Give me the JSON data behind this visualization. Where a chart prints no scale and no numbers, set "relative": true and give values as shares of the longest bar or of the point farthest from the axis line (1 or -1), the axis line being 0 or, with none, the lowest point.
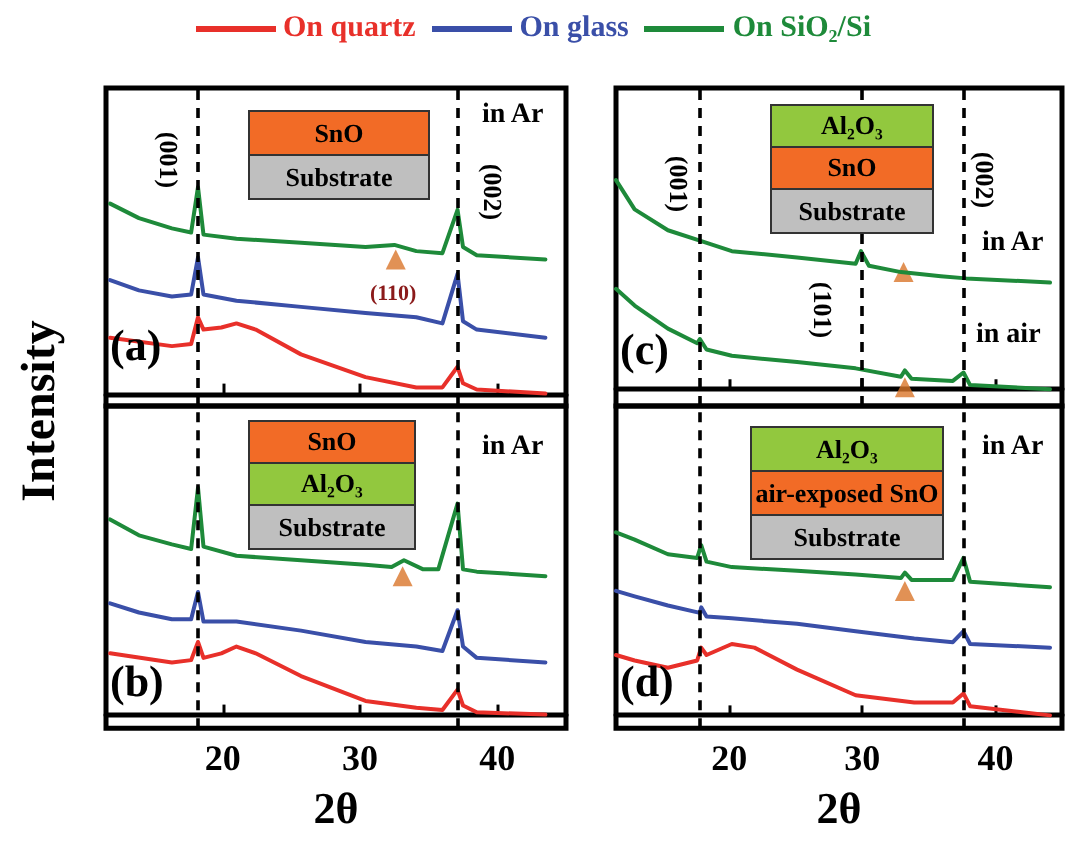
{
  "chart_data": [
    {
      "type": "line",
      "relative": true,
      "legend": "top",
      "ylabel": "Intensity",
      "xlim": [
        11.5,
        45
      ],
      "xticks": [
        20,
        30,
        40
      ],
      "tick_labels": false,
      "line_style": "solid",
      "annotations": [
        "(a)",
        "in Ar",
        "SnO",
        "Substrate",
        "(110)",
        "(001)",
        "(002)"
      ],
      "ref_lines": [
        {
          "axis": "x",
          "value": 18.2,
          "line_style": "dashed",
          "color": "#000000"
        },
        {
          "axis": "x",
          "value": 37.1,
          "line_style": "dashed",
          "color": "#000000"
        }
      ],
      "series": [
        {
          "name": "On quartz",
          "color": "#e8302a",
          "x": [
            11.8,
            16.3,
            17.7,
            18.2,
            18.6,
            19.9,
            21.0,
            22.4,
            25.7,
            30.4,
            34.1,
            36.0,
            37.1,
            37.5,
            38.5,
            43.5
          ],
          "values": [
            0.27,
            0.23,
            0.24,
            0.37,
            0.31,
            0.32,
            0.34,
            0.31,
            0.19,
            0.08,
            0.03,
            0.03,
            0.13,
            0.05,
            0.02,
            0
          ]
        },
        {
          "name": "On glass",
          "color": "#3a4fa8",
          "x": [
            11.8,
            13.9,
            16.3,
            17.7,
            18.2,
            18.6,
            21.0,
            25.7,
            30.4,
            34.1,
            36.0,
            37.1,
            37.5,
            38.5,
            43.5
          ],
          "values": [
            0.55,
            0.5,
            0.47,
            0.48,
            0.66,
            0.48,
            0.45,
            0.42,
            0.39,
            0.37,
            0.34,
            0.58,
            0.35,
            0.31,
            0.27
          ]
        },
        {
          "name": "On SiO₂/Si",
          "color": "#1e8a3a",
          "x": [
            11.8,
            13.9,
            16.3,
            17.7,
            18.2,
            18.6,
            21.0,
            25.7,
            30.4,
            32.5,
            34.1,
            36.0,
            37.1,
            37.5,
            38.5,
            43.5
          ],
          "values": [
            0.92,
            0.85,
            0.8,
            0.78,
            1,
            0.77,
            0.75,
            0.73,
            0.71,
            0.72,
            0.69,
            0.68,
            0.89,
            0.71,
            0.67,
            0.65
          ]
        },
        {
          "type": "scatter",
          "marker": "triangle",
          "color": "#d9762b",
          "x": [
            32.6
          ],
          "values": [
            0.65
          ]
        }
      ]
    },
    {
      "type": "line",
      "relative": true,
      "xlabel": "2θ",
      "xlim": [
        11.5,
        45
      ],
      "xticks": [
        20,
        30,
        40
      ],
      "tick_labels": "x",
      "line_style": "solid",
      "annotations": [
        "(b)",
        "in Ar",
        "SnO",
        "Al₂O₃",
        "Substrate"
      ],
      "ref_lines": [
        {
          "axis": "x",
          "value": 18.2,
          "line_style": "dashed",
          "color": "#000000"
        },
        {
          "axis": "x",
          "value": 37.1,
          "line_style": "dashed",
          "color": "#000000"
        }
      ],
      "series": [
        {
          "color": "#e8302a",
          "x": [
            11.8,
            16.3,
            17.7,
            18.2,
            18.6,
            19.9,
            21.0,
            22.4,
            25.7,
            30.4,
            34.1,
            36.0,
            37.1,
            37.5,
            38.5,
            43.5
          ],
          "values": [
            0.27,
            0.23,
            0.24,
            0.32,
            0.25,
            0.27,
            0.3,
            0.27,
            0.17,
            0.06,
            0.03,
            0.02,
            0.11,
            0.04,
            0.01,
            0
          ]
        },
        {
          "color": "#3a4fa8",
          "x": [
            11.8,
            13.9,
            16.3,
            17.7,
            18.2,
            18.6,
            21.0,
            25.7,
            30.4,
            34.1,
            36.0,
            37.1,
            37.5,
            38.5,
            43.5
          ],
          "values": [
            0.49,
            0.45,
            0.42,
            0.42,
            0.54,
            0.41,
            0.41,
            0.37,
            0.32,
            0.3,
            0.28,
            0.46,
            0.3,
            0.25,
            0.23
          ]
        },
        {
          "color": "#1e8a3a",
          "x": [
            11.8,
            13.9,
            16.3,
            17.7,
            18.2,
            18.6,
            21.0,
            25.7,
            30.4,
            32.3,
            33.2,
            34.6,
            35.7,
            37.1,
            37.5,
            38.5,
            43.5
          ],
          "values": [
            0.86,
            0.79,
            0.75,
            0.73,
            1,
            0.74,
            0.7,
            0.68,
            0.66,
            0.65,
            0.68,
            0.64,
            0.64,
            0.93,
            0.64,
            0.63,
            0.61
          ]
        },
        {
          "type": "scatter",
          "marker": "triangle",
          "color": "#d9762b",
          "x": [
            33.1
          ],
          "values": [
            0.61
          ]
        }
      ]
    },
    {
      "type": "line",
      "relative": true,
      "xlim": [
        11.5,
        45
      ],
      "xticks": [
        20,
        30,
        40
      ],
      "tick_labels": false,
      "line_style": "solid",
      "annotations": [
        "(c)",
        "in Ar",
        "in air",
        "Al₂O₃",
        "SnO",
        "Substrate",
        "(001)",
        "(101)",
        "(002)"
      ],
      "ref_lines": [
        {
          "axis": "x",
          "value": 17.8,
          "line_style": "dashed",
          "color": "#000000"
        },
        {
          "axis": "x",
          "value": 29.9,
          "line_style": "dashed",
          "color": "#000000"
        },
        {
          "axis": "x",
          "value": 37.6,
          "line_style": "dashed",
          "color": "#000000"
        }
      ],
      "series": [
        {
          "color": "#1e8a3a",
          "x": [
            11.5,
            12.9,
            15.4,
            17.8,
            20.2,
            25.1,
            29.5,
            29.9,
            30.5,
            32.9,
            35.9,
            37.8,
            44.1
          ],
          "values": [
            1,
            0.86,
            0.76,
            0.71,
            0.66,
            0.63,
            0.6,
            0.66,
            0.59,
            0.56,
            0.54,
            0.53,
            0.51
          ]
        },
        {
          "color": "#1e8a3a",
          "x": [
            11.5,
            12.9,
            15.4,
            17.6,
            17.8,
            18.3,
            20.2,
            25.1,
            29.5,
            32.9,
            33.2,
            33.7,
            36.8,
            37.6,
            38.1,
            44.1
          ],
          "values": [
            0.48,
            0.4,
            0.29,
            0.22,
            0.24,
            0.19,
            0.16,
            0.13,
            0.1,
            0.06,
            0.09,
            0.05,
            0.04,
            0.08,
            0.02,
            0
          ]
        },
        {
          "type": "scatter",
          "marker": "triangle",
          "color": "#d9762b",
          "x": [
            33.1,
            33.2
          ],
          "values": [
            0.56,
            0.01
          ]
        }
      ]
    },
    {
      "type": "line",
      "relative": true,
      "xlabel": "2θ",
      "xlim": [
        11.5,
        45
      ],
      "xticks": [
        20,
        30,
        40
      ],
      "tick_labels": "x",
      "line_style": "solid",
      "annotations": [
        "(d)",
        "in Ar",
        "Al₂O₃",
        "air-exposed SnO",
        "Substrate"
      ],
      "ref_lines": [
        {
          "axis": "x",
          "value": 17.8,
          "line_style": "dashed",
          "color": "#000000"
        },
        {
          "axis": "x",
          "value": 37.6,
          "line_style": "dashed",
          "color": "#000000"
        }
      ],
      "series": [
        {
          "color": "#e8302a",
          "x": [
            11.5,
            12.9,
            15.4,
            17.6,
            17.9,
            18.3,
            20.2,
            21.9,
            25.1,
            29.5,
            33.9,
            36.8,
            37.6,
            38.1,
            44.1
          ],
          "values": [
            0.33,
            0.3,
            0.26,
            0.3,
            0.37,
            0.33,
            0.39,
            0.37,
            0.25,
            0.11,
            0.07,
            0.07,
            0.12,
            0.05,
            0
          ]
        },
        {
          "color": "#3a4fa8",
          "x": [
            11.5,
            12.9,
            15.4,
            17.8,
            17.9,
            18.3,
            20.2,
            25.1,
            29.5,
            33.9,
            36.8,
            37.6,
            38.1,
            44.1
          ],
          "values": [
            0.68,
            0.65,
            0.6,
            0.56,
            0.59,
            0.54,
            0.53,
            0.5,
            0.46,
            0.42,
            0.4,
            0.46,
            0.39,
            0.37
          ]
        },
        {
          "color": "#1e8a3a",
          "x": [
            11.5,
            12.9,
            15.4,
            17.6,
            17.9,
            18.3,
            20.2,
            25.1,
            29.5,
            32.9,
            33.2,
            33.7,
            36.8,
            37.6,
            38.1,
            44.1
          ],
          "values": [
            1,
            0.96,
            0.88,
            0.86,
            0.93,
            0.84,
            0.81,
            0.79,
            0.77,
            0.75,
            0.78,
            0.74,
            0.74,
            0.86,
            0.73,
            0.7
          ]
        },
        {
          "type": "scatter",
          "marker": "triangle",
          "color": "#d9762b",
          "x": [
            33.2
          ],
          "values": [
            0.68
          ]
        }
      ]
    }
  ]
}
